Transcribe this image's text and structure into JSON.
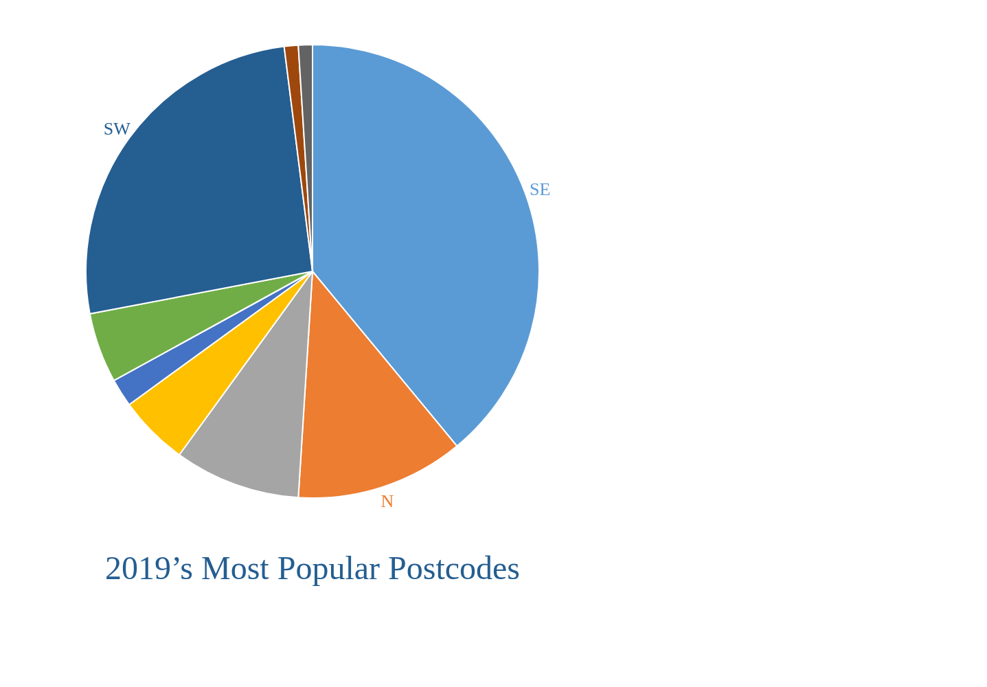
{
  "chart_data": {
    "type": "pie",
    "title": "2019’s Most Popular Postcodes",
    "categories": [
      "SE",
      "N",
      null,
      null,
      null,
      null,
      "SW",
      null,
      null
    ],
    "values": [
      39,
      12,
      9,
      5,
      2,
      5,
      26,
      1,
      1
    ],
    "colors": [
      "#5b9bd5",
      "#ed7d31",
      "#a5a5a5",
      "#ffc000",
      "#4472c4",
      "#70ad47",
      "#255e91",
      "#9e480e",
      "#636363"
    ],
    "legend": false
  }
}
